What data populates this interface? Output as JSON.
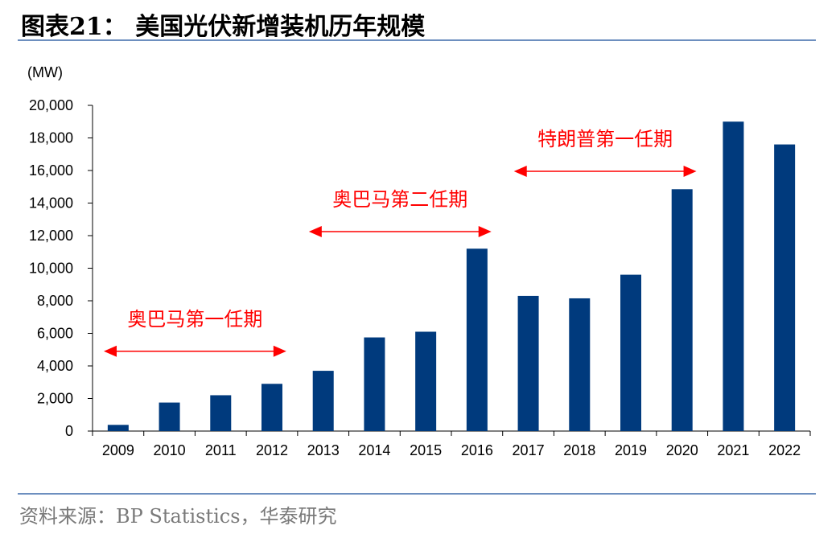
{
  "header": {
    "title": "图表21：  美国光伏新增装机历年规模"
  },
  "footer": {
    "source": "资料来源：BP Statistics，华泰研究"
  },
  "colors": {
    "bar": "#003a7d",
    "annotation": "#ff0000",
    "rule": "#6d8fbf"
  },
  "chart_data": {
    "type": "bar",
    "unit_label": "(MW)",
    "categories": [
      "2009",
      "2010",
      "2011",
      "2012",
      "2013",
      "2014",
      "2015",
      "2016",
      "2017",
      "2018",
      "2019",
      "2020",
      "2021",
      "2022"
    ],
    "values": [
      380,
      1750,
      2200,
      2900,
      3700,
      5750,
      6100,
      11200,
      8300,
      8150,
      9600,
      14850,
      19000,
      17600
    ],
    "ylim": [
      0,
      20000
    ],
    "yticks": [
      0,
      2000,
      4000,
      6000,
      8000,
      10000,
      12000,
      14000,
      16000,
      18000,
      20000
    ],
    "ytick_labels": [
      "0",
      "2,000",
      "4,000",
      "6,000",
      "8,000",
      "10,000",
      "12,000",
      "14,000",
      "16,000",
      "18,000",
      "20,000"
    ],
    "grid": false,
    "annotations": [
      {
        "text": "奥巴马第一任期",
        "from": "2009",
        "to": "2012",
        "level": 4900
      },
      {
        "text": "奥巴马第二任期",
        "from": "2013",
        "to": "2016",
        "level": 12250
      },
      {
        "text": "特朗普第一任期",
        "from": "2017",
        "to": "2020",
        "level": 15950
      }
    ]
  }
}
